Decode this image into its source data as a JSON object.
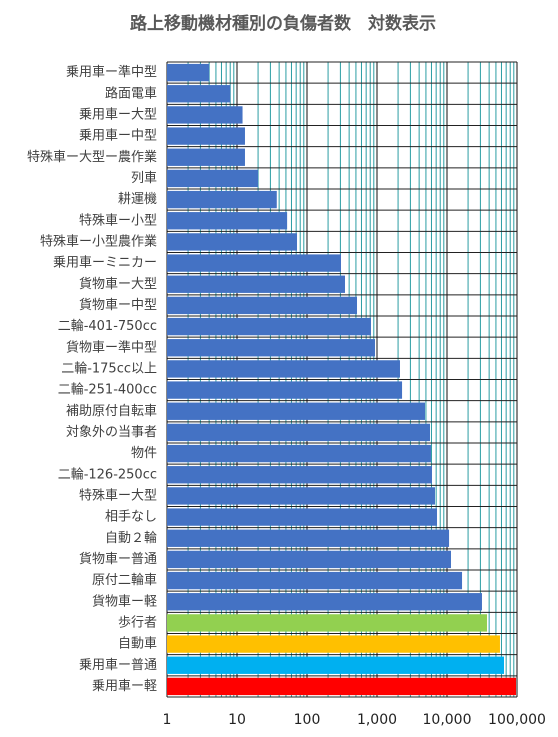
{
  "chart_data": {
    "type": "hbar",
    "title": "路上移動機材種別の負傷者数　対数表示",
    "categories": [
      "乗用車ー準中型",
      "路面電車",
      "乗用車ー大型",
      "乗用車ー中型",
      "特殊車ー大型ー農作業",
      "列車",
      "耕運機",
      "特殊車ー小型",
      "特殊車ー小型農作業",
      "乗用車ーミニカー",
      "貨物車ー大型",
      "貨物車ー中型",
      "二輪-401-750cc",
      "貨物車ー準中型",
      "二輪-175cc以上",
      "二輪-251-400cc",
      "補助原付自転車",
      "対象外の当事者",
      "物件",
      "二輪-126-250cc",
      "特殊車ー大型",
      "相手なし",
      "自動２輪",
      "貨物車ー普通",
      "原付二輪車",
      "貨物車ー軽",
      "歩行者",
      "自動車",
      "乗用車ー普通",
      "乗用車ー軽"
    ],
    "values": [
      4,
      8,
      12,
      13,
      13,
      20,
      37,
      52,
      72,
      306,
      349,
      518,
      820,
      936,
      2130,
      2280,
      4850,
      5720,
      5900,
      6100,
      6740,
      7200,
      10700,
      11400,
      16400,
      31600,
      37300,
      57100,
      65200,
      96800
    ],
    "colors": [
      "#4472c4",
      "#4472c4",
      "#4472c4",
      "#4472c4",
      "#4472c4",
      "#4472c4",
      "#4472c4",
      "#4472c4",
      "#4472c4",
      "#4472c4",
      "#4472c4",
      "#4472c4",
      "#4472c4",
      "#4472c4",
      "#4472c4",
      "#4472c4",
      "#4472c4",
      "#4472c4",
      "#4472c4",
      "#4472c4",
      "#4472c4",
      "#4472c4",
      "#4472c4",
      "#4472c4",
      "#4472c4",
      "#4472c4",
      "#92d050",
      "#ffc000",
      "#00b0f0",
      "#ff0000"
    ],
    "xlim": [
      1,
      100000
    ],
    "xticks": [
      1,
      10,
      100,
      {
        "value": 1000,
        "label": "1,000"
      },
      {
        "value": 10000,
        "label": "10,000"
      },
      {
        "value": 100000,
        "label": "100,000"
      }
    ],
    "xscale": "log",
    "grid": true,
    "minor_grid": true
  }
}
